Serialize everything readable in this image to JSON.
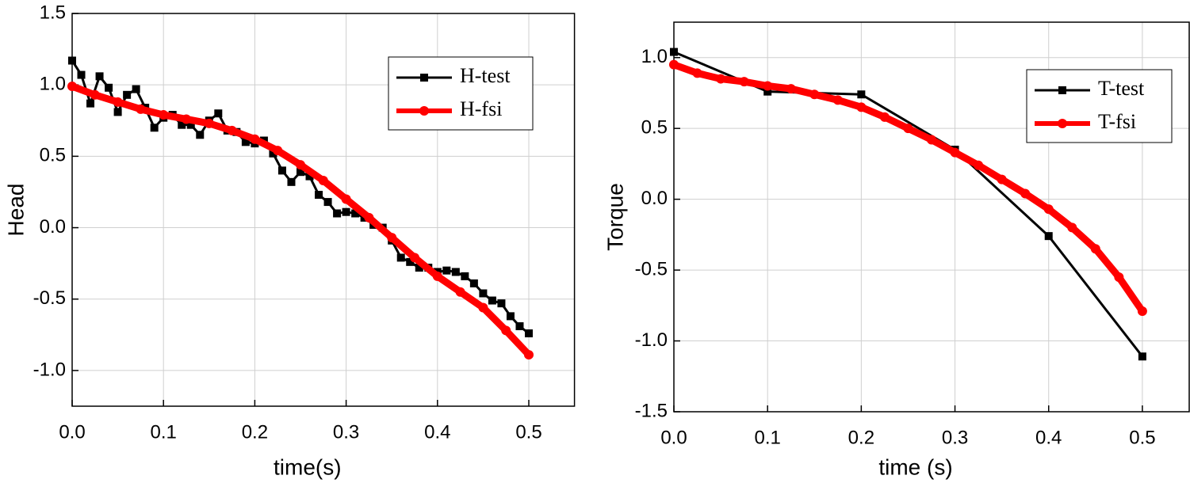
{
  "chart_data": [
    {
      "type": "line",
      "xlabel": "time(s)",
      "ylabel": "Head",
      "xlim": [
        0,
        0.55
      ],
      "ylim": [
        -1.25,
        1.5
      ],
      "xticks": [
        {
          "value": 0,
          "label": "0.0"
        },
        0.1,
        0.2,
        0.3,
        0.4,
        0.5
      ],
      "yticks": [
        {
          "value": -1,
          "label": "-1.0"
        },
        -0.5,
        {
          "value": 0,
          "label": "0.0"
        },
        0.5,
        {
          "value": 1,
          "label": "1.0"
        },
        1.5
      ],
      "grid": true,
      "legend": "upper right",
      "series": [
        {
          "name": "H-test",
          "color": "#000000",
          "marker": "square",
          "x": [
            0,
            0.01,
            0.02,
            0.03,
            0.04,
            0.05,
            0.06,
            0.07,
            0.08,
            0.09,
            0.1,
            0.11,
            0.12,
            0.13,
            0.14,
            0.15,
            0.16,
            0.17,
            0.18,
            0.19,
            0.2,
            0.21,
            0.22,
            0.23,
            0.24,
            0.25,
            0.26,
            0.27,
            0.28,
            0.29,
            0.3,
            0.31,
            0.32,
            0.33,
            0.34,
            0.35,
            0.36,
            0.37,
            0.38,
            0.39,
            0.4,
            0.41,
            0.42,
            0.43,
            0.44,
            0.45,
            0.46,
            0.47,
            0.48,
            0.49,
            0.5
          ],
          "values": [
            1.17,
            1.07,
            0.87,
            1.06,
            0.98,
            0.81,
            0.93,
            0.97,
            0.84,
            0.7,
            0.77,
            0.79,
            0.72,
            0.72,
            0.65,
            0.75,
            0.8,
            0.68,
            0.67,
            0.6,
            0.59,
            0.61,
            0.52,
            0.4,
            0.32,
            0.39,
            0.36,
            0.23,
            0.18,
            0.1,
            0.11,
            0.1,
            0.07,
            0.02,
            0,
            -0.09,
            -0.21,
            -0.24,
            -0.28,
            -0.28,
            -0.31,
            -0.3,
            -0.31,
            -0.34,
            -0.39,
            -0.46,
            -0.51,
            -0.53,
            -0.62,
            -0.69,
            -0.74
          ]
        },
        {
          "name": "H-fsi",
          "color": "#ff0000",
          "marker": "circle",
          "x": [
            0,
            0.025,
            0.05,
            0.075,
            0.1,
            0.125,
            0.15,
            0.175,
            0.2,
            0.225,
            0.25,
            0.275,
            0.3,
            0.325,
            0.35,
            0.375,
            0.4,
            0.425,
            0.45,
            0.475,
            0.5
          ],
          "values": [
            0.99,
            0.93,
            0.88,
            0.83,
            0.79,
            0.76,
            0.73,
            0.68,
            0.62,
            0.54,
            0.44,
            0.33,
            0.2,
            0.07,
            -0.07,
            -0.21,
            -0.34,
            -0.45,
            -0.56,
            -0.72,
            -0.89
          ]
        }
      ]
    },
    {
      "type": "line",
      "xlabel": "time (s)",
      "ylabel": "Torque",
      "xlim": [
        0,
        0.55
      ],
      "ylim": [
        -1.5,
        1.25
      ],
      "xticks": [
        {
          "value": 0,
          "label": "0.0"
        },
        0.1,
        0.2,
        0.3,
        0.4,
        0.5
      ],
      "yticks": [
        -1.5,
        {
          "value": -1,
          "label": "-1.0"
        },
        -0.5,
        {
          "value": 0,
          "label": "0.0"
        },
        0.5,
        {
          "value": 1,
          "label": "1.0"
        }
      ],
      "grid": true,
      "legend": "upper right",
      "series": [
        {
          "name": "T-test",
          "color": "#000000",
          "marker": "square",
          "x": [
            0,
            0.1,
            0.2,
            0.3,
            0.4,
            0.5
          ],
          "values": [
            1.04,
            0.76,
            0.74,
            0.35,
            -0.26,
            -1.11
          ]
        },
        {
          "name": "T-fsi",
          "color": "#ff0000",
          "marker": "circle",
          "x": [
            0,
            0.025,
            0.05,
            0.075,
            0.1,
            0.125,
            0.15,
            0.175,
            0.2,
            0.225,
            0.25,
            0.275,
            0.3,
            0.325,
            0.35,
            0.375,
            0.4,
            0.425,
            0.45,
            0.475,
            0.5
          ],
          "values": [
            0.95,
            0.89,
            0.85,
            0.83,
            0.8,
            0.78,
            0.74,
            0.7,
            0.65,
            0.58,
            0.5,
            0.42,
            0.33,
            0.24,
            0.14,
            0.04,
            -0.07,
            -0.2,
            -0.35,
            -0.55,
            -0.79
          ]
        }
      ]
    }
  ]
}
